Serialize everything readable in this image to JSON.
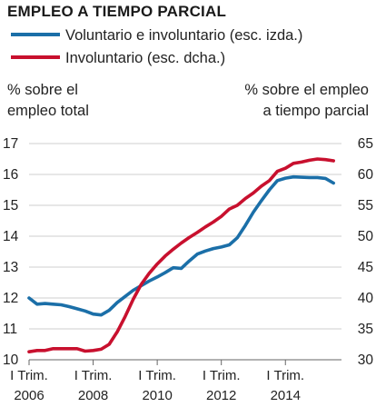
{
  "chart_data": {
    "type": "line",
    "title": "EMPLEO A TIEMPO PARCIAL",
    "legend": {
      "placement": "top-left",
      "entries": [
        {
          "label": "Voluntario e involuntario (esc. izda.)",
          "color": "#1b6fa8"
        },
        {
          "label": "Involuntario (esc. dcha.)",
          "color": "#c8102e"
        }
      ]
    },
    "left_axis": {
      "title_lines": [
        "% sobre el",
        "empleo total"
      ],
      "ylim": [
        10,
        17
      ],
      "ticks": [
        10,
        11,
        12,
        13,
        14,
        15,
        16,
        17
      ]
    },
    "right_axis": {
      "title_lines": [
        "% sobre el empleo",
        "a tiempo parcial"
      ],
      "ylim": [
        30,
        65
      ],
      "ticks": [
        30,
        35,
        40,
        45,
        50,
        55,
        60,
        65
      ]
    },
    "x_axis": {
      "xlim": [
        2006.0,
        2015.75
      ],
      "ticks": [
        {
          "x": 2006,
          "line1": "I Trim.",
          "line2": "2006"
        },
        {
          "x": 2008,
          "line1": "I Trim.",
          "line2": "2008"
        },
        {
          "x": 2010,
          "line1": "I Trim.",
          "line2": "2010"
        },
        {
          "x": 2012,
          "line1": "I Trim.",
          "line2": "2012"
        },
        {
          "x": 2014,
          "line1": "I Trim.",
          "line2": "2014"
        }
      ]
    },
    "grid": true,
    "series": [
      {
        "name": "Voluntario e involuntario (esc. izda.)",
        "axis": "left",
        "color": "#1b6fa8",
        "x": [
          2006.0,
          2006.25,
          2006.5,
          2006.75,
          2007.0,
          2007.25,
          2007.5,
          2007.75,
          2008.0,
          2008.25,
          2008.5,
          2008.75,
          2009.0,
          2009.25,
          2009.5,
          2009.75,
          2010.0,
          2010.25,
          2010.5,
          2010.75,
          2011.0,
          2011.25,
          2011.5,
          2011.75,
          2012.0,
          2012.25,
          2012.5,
          2012.75,
          2013.0,
          2013.25,
          2013.5,
          2013.75,
          2014.0,
          2014.25,
          2014.5,
          2014.75,
          2015.0,
          2015.25,
          2015.5
        ],
        "values": [
          12.0,
          11.8,
          11.82,
          11.8,
          11.78,
          11.72,
          11.65,
          11.58,
          11.48,
          11.45,
          11.6,
          11.85,
          12.05,
          12.25,
          12.4,
          12.55,
          12.68,
          12.82,
          12.98,
          12.96,
          13.2,
          13.42,
          13.52,
          13.6,
          13.65,
          13.72,
          13.95,
          14.35,
          14.78,
          15.15,
          15.5,
          15.8,
          15.88,
          15.92,
          15.91,
          15.9,
          15.9,
          15.87,
          15.72
        ]
      },
      {
        "name": "Involuntario (esc. dcha.)",
        "axis": "right",
        "color": "#c8102e",
        "x": [
          2006.0,
          2006.25,
          2006.5,
          2006.75,
          2007.0,
          2007.25,
          2007.5,
          2007.75,
          2008.0,
          2008.25,
          2008.5,
          2008.75,
          2009.0,
          2009.25,
          2009.5,
          2009.75,
          2010.0,
          2010.25,
          2010.5,
          2010.75,
          2011.0,
          2011.25,
          2011.5,
          2011.75,
          2012.0,
          2012.25,
          2012.5,
          2012.75,
          2013.0,
          2013.25,
          2013.5,
          2013.75,
          2014.0,
          2014.25,
          2014.5,
          2014.75,
          2015.0,
          2015.25,
          2015.5
        ],
        "values": [
          31.3,
          31.5,
          31.5,
          31.8,
          31.8,
          31.8,
          31.8,
          31.4,
          31.5,
          31.7,
          32.5,
          34.5,
          37.0,
          39.8,
          42.2,
          44.0,
          45.5,
          46.8,
          47.9,
          48.9,
          49.8,
          50.6,
          51.5,
          52.3,
          53.2,
          54.4,
          55.0,
          56.1,
          57.0,
          58.1,
          59.0,
          60.5,
          61.0,
          61.8,
          62.0,
          62.3,
          62.5,
          62.4,
          62.2
        ]
      }
    ]
  }
}
